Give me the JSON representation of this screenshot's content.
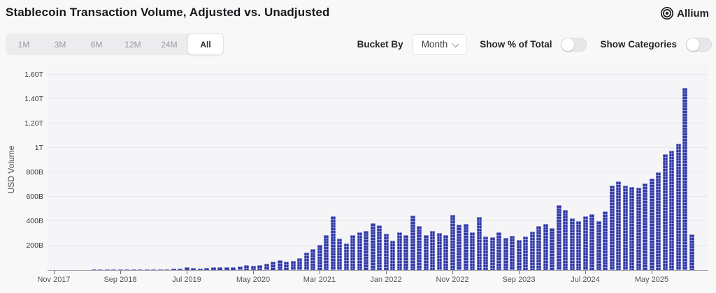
{
  "header": {
    "title": "Stablecoin Transaction Volume, Adjusted vs. Unadjusted",
    "brand": "Allium"
  },
  "controls": {
    "ranges": [
      "1M",
      "3M",
      "6M",
      "12M",
      "24M",
      "All"
    ],
    "selected_range": "All",
    "bucket_by_label": "Bucket By",
    "bucket_value": "Month",
    "show_pct_label": "Show % of Total",
    "show_pct_on": false,
    "show_categories_label": "Show Categories",
    "show_categories_on": false
  },
  "chart_data": {
    "type": "bar",
    "title": "Stablecoin Transaction Volume, Adjusted vs. Unadjusted",
    "xlabel": "",
    "ylabel": "USD Volume",
    "unit": "USD billions per month",
    "bar_color": "#2b34a6",
    "grid": true,
    "legend_position": "none",
    "ylim_billions": [
      0,
      1690
    ],
    "y_ticks": [
      {
        "label": "200B",
        "value": 200
      },
      {
        "label": "400B",
        "value": 400
      },
      {
        "label": "600B",
        "value": 600
      },
      {
        "label": "800B",
        "value": 800
      },
      {
        "label": "1T",
        "value": 1000
      },
      {
        "label": "1.20T",
        "value": 1200
      },
      {
        "label": "1.40T",
        "value": 1400
      },
      {
        "label": "1.60T",
        "value": 1600
      }
    ],
    "x_ticks": [
      {
        "index": 0,
        "label": "Nov 2017"
      },
      {
        "index": 10,
        "label": "Sep 2018"
      },
      {
        "index": 20,
        "label": "Jul 2019"
      },
      {
        "index": 30,
        "label": "May 2020"
      },
      {
        "index": 40,
        "label": "Mar 2021"
      },
      {
        "index": 50,
        "label": "Jan 2022"
      },
      {
        "index": 60,
        "label": "Nov 2022"
      },
      {
        "index": 70,
        "label": "Sep 2023"
      },
      {
        "index": 80,
        "label": "Jul 2024"
      },
      {
        "index": 90,
        "label": "May 2025"
      }
    ],
    "categories": [
      "2017-11",
      "2017-12",
      "2018-01",
      "2018-02",
      "2018-03",
      "2018-04",
      "2018-05",
      "2018-06",
      "2018-07",
      "2018-08",
      "2018-09",
      "2018-10",
      "2018-11",
      "2018-12",
      "2019-01",
      "2019-02",
      "2019-03",
      "2019-04",
      "2019-05",
      "2019-06",
      "2019-07",
      "2019-08",
      "2019-09",
      "2019-10",
      "2019-11",
      "2019-12",
      "2020-01",
      "2020-02",
      "2020-03",
      "2020-04",
      "2020-05",
      "2020-06",
      "2020-07",
      "2020-08",
      "2020-09",
      "2020-10",
      "2020-11",
      "2020-12",
      "2021-01",
      "2021-02",
      "2021-03",
      "2021-04",
      "2021-05",
      "2021-06",
      "2021-07",
      "2021-08",
      "2021-09",
      "2021-10",
      "2021-11",
      "2021-12",
      "2022-01",
      "2022-02",
      "2022-03",
      "2022-04",
      "2022-05",
      "2022-06",
      "2022-07",
      "2022-08",
      "2022-09",
      "2022-10",
      "2022-11",
      "2022-12",
      "2023-01",
      "2023-02",
      "2023-03",
      "2023-04",
      "2023-05",
      "2023-06",
      "2023-07",
      "2023-08",
      "2023-09",
      "2023-10",
      "2023-11",
      "2023-12",
      "2024-01",
      "2024-02",
      "2024-03",
      "2024-04",
      "2024-05",
      "2024-06",
      "2024-07",
      "2024-08",
      "2024-09",
      "2024-10",
      "2024-11",
      "2024-12",
      "2025-01",
      "2025-02",
      "2025-03",
      "2025-04",
      "2025-05",
      "2025-06",
      "2025-07",
      "2025-08",
      "2025-09",
      "2025-10",
      "2025-11"
    ],
    "values_billions": [
      1,
      2,
      2,
      2,
      2,
      2,
      3,
      3,
      3,
      3,
      4,
      4,
      5,
      5,
      6,
      6,
      7,
      8,
      9,
      10,
      21,
      15,
      13,
      15,
      21,
      21,
      21,
      21,
      30,
      39,
      32,
      39,
      49,
      68,
      81,
      68,
      77,
      96,
      145,
      170,
      204,
      283,
      440,
      255,
      218,
      283,
      308,
      318,
      381,
      368,
      297,
      240,
      306,
      287,
      443,
      362,
      287,
      321,
      302,
      284,
      453,
      373,
      380,
      311,
      434,
      274,
      269,
      306,
      265,
      280,
      246,
      274,
      317,
      359,
      377,
      344,
      531,
      490,
      424,
      400,
      438,
      456,
      400,
      480,
      693,
      728,
      693,
      678,
      672,
      706,
      747,
      800,
      950,
      978,
      1035,
      1490,
      293
    ]
  }
}
